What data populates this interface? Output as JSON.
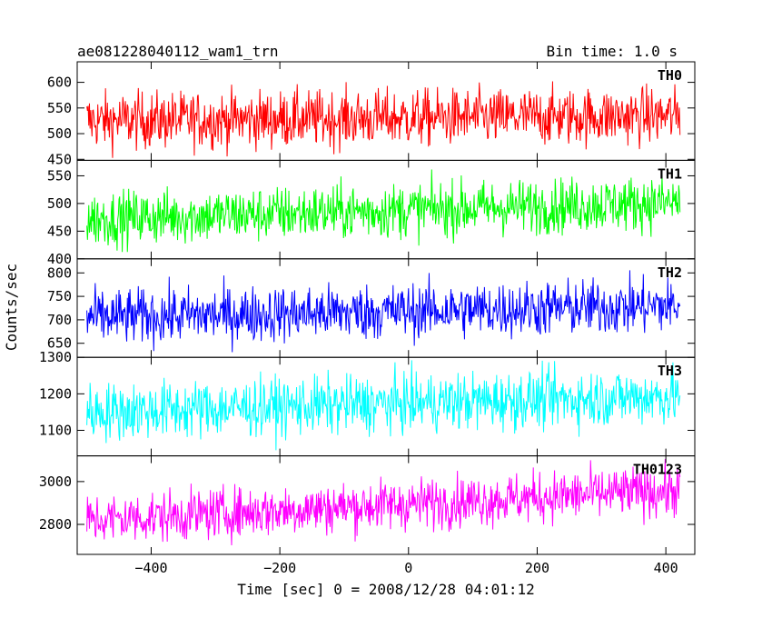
{
  "header": {
    "title": "ae081228040112_wam1_trn",
    "bin_time": "Bin time: 1.0 s"
  },
  "axes": {
    "ylabel": "Counts/sec",
    "xlabel": "Time [sec] 0 = 2008/12/28 04:01:12"
  },
  "chart_data": [
    {
      "type": "line",
      "name": "TH0",
      "color": "#ff0000",
      "x_start": -500,
      "x_end": 422,
      "ylim": [
        448,
        640
      ],
      "yticks": [
        450,
        500,
        550,
        600
      ],
      "trend": [
        525,
        535
      ],
      "noise": 28
    },
    {
      "type": "line",
      "name": "TH1",
      "color": "#00ff00",
      "x_start": -500,
      "x_end": 422,
      "ylim": [
        400,
        578
      ],
      "yticks": [
        400,
        450,
        500,
        550
      ],
      "trend": [
        472,
        502
      ],
      "noise": 25
    },
    {
      "type": "line",
      "name": "TH2",
      "color": "#0000ff",
      "x_start": -500,
      "x_end": 422,
      "ylim": [
        620,
        830
      ],
      "yticks": [
        650,
        700,
        750,
        800
      ],
      "trend": [
        705,
        730
      ],
      "noise": 30
    },
    {
      "type": "line",
      "name": "TH3",
      "color": "#00ffff",
      "x_start": -500,
      "x_end": 422,
      "ylim": [
        1030,
        1300
      ],
      "yticks": [
        1100,
        1200,
        1300
      ],
      "trend": [
        1150,
        1195
      ],
      "noise": 40
    },
    {
      "type": "line",
      "name": "TH0123",
      "color": "#ff00ff",
      "x_start": -500,
      "x_end": 422,
      "ylim": [
        2660,
        3120
      ],
      "yticks": [
        2800,
        3000
      ],
      "trend": [
        2820,
        2960
      ],
      "noise": 60
    }
  ],
  "x_axis": {
    "xlim": [
      -515,
      445
    ],
    "ticks": [
      -400,
      -200,
      0,
      200,
      400
    ],
    "tick_labels": [
      "−400",
      "−200",
      "0",
      "200",
      "400"
    ]
  }
}
